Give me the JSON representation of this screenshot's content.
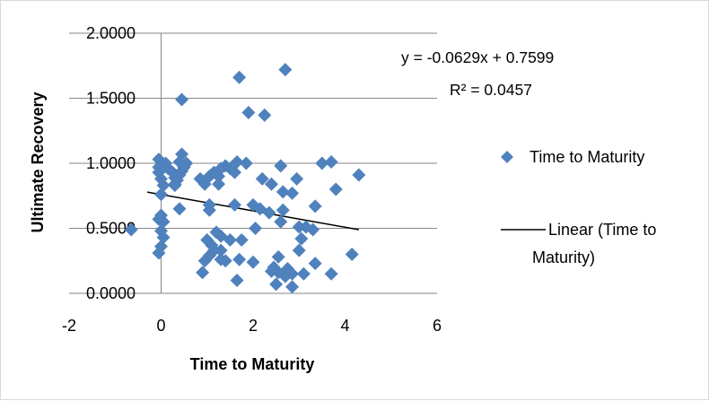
{
  "chart_data": {
    "type": "scatter",
    "xlabel": "Time to Maturity",
    "ylabel": "Ultimate Recovery",
    "xlim": [
      -2,
      6
    ],
    "ylim": [
      0,
      2
    ],
    "x_ticks": [
      "-2",
      "0",
      "2",
      "4",
      "6"
    ],
    "y_ticks": [
      "0.0000",
      "0.5000",
      "1.0000",
      "1.5000",
      "2.0000"
    ],
    "grid": "horizontal major gridlines, vertical line at x = 0",
    "legend_position": "right",
    "marker_color": "#4f81bd",
    "trendline_color": "#000000",
    "trendline": {
      "slope": -0.0629,
      "intercept": 0.7599,
      "x_range": [
        -0.3,
        4.3
      ],
      "equation": "y = -0.0629x + 0.7599",
      "r_squared": "R² = 0.0457"
    },
    "series": [
      {
        "name": "Time to Maturity",
        "marker": "diamond",
        "points": [
          [
            -0.65,
            0.49
          ],
          [
            -0.05,
            1.03
          ],
          [
            -0.05,
            0.97
          ],
          [
            -0.05,
            0.93
          ],
          [
            0.0,
            0.88
          ],
          [
            0.05,
            0.83
          ],
          [
            0.0,
            0.76
          ],
          [
            0.1,
            1.0
          ],
          [
            0.15,
            0.96
          ],
          [
            0.25,
            0.93
          ],
          [
            0.3,
            0.89
          ],
          [
            0.3,
            0.84
          ],
          [
            0.4,
            1.01
          ],
          [
            0.45,
            1.07
          ],
          [
            0.5,
            0.97
          ],
          [
            0.55,
            1.0
          ],
          [
            0.45,
            0.94
          ],
          [
            0.4,
            0.91
          ],
          [
            0.35,
            0.87
          ],
          [
            0.3,
            0.83
          ],
          [
            0.45,
            1.49
          ],
          [
            0.4,
            0.65
          ],
          [
            0.0,
            0.6
          ],
          [
            0.05,
            0.55
          ],
          [
            0.0,
            0.48
          ],
          [
            0.05,
            0.43
          ],
          [
            0.0,
            0.36
          ],
          [
            -0.05,
            0.31
          ],
          [
            -0.05,
            0.57
          ],
          [
            0.85,
            0.88
          ],
          [
            0.95,
            0.84
          ],
          [
            1.05,
            0.9
          ],
          [
            1.15,
            0.93
          ],
          [
            1.25,
            0.9
          ],
          [
            1.3,
            0.96
          ],
          [
            1.4,
            0.98
          ],
          [
            1.5,
            0.96
          ],
          [
            1.6,
            0.93
          ],
          [
            1.65,
            1.01
          ],
          [
            1.85,
            1.0
          ],
          [
            2.2,
            0.88
          ],
          [
            2.4,
            0.84
          ],
          [
            2.6,
            0.98
          ],
          [
            1.25,
            0.84
          ],
          [
            1.05,
            0.68
          ],
          [
            1.05,
            0.64
          ],
          [
            1.6,
            0.68
          ],
          [
            2.0,
            0.68
          ],
          [
            2.15,
            0.65
          ],
          [
            2.35,
            0.62
          ],
          [
            2.05,
            0.5
          ],
          [
            1.2,
            0.47
          ],
          [
            1.3,
            0.44
          ],
          [
            1.0,
            0.41
          ],
          [
            1.1,
            0.37
          ],
          [
            1.5,
            0.41
          ],
          [
            1.75,
            0.41
          ],
          [
            1.15,
            0.33
          ],
          [
            1.3,
            0.33
          ],
          [
            1.05,
            0.29
          ],
          [
            0.95,
            0.25
          ],
          [
            1.3,
            0.26
          ],
          [
            1.4,
            0.25
          ],
          [
            1.7,
            0.26
          ],
          [
            0.9,
            0.16
          ],
          [
            1.65,
            0.1
          ],
          [
            2.0,
            0.24
          ],
          [
            1.7,
            1.66
          ],
          [
            1.9,
            1.39
          ],
          [
            2.25,
            1.37
          ],
          [
            2.7,
            1.72
          ],
          [
            2.65,
            0.78
          ],
          [
            2.85,
            0.77
          ],
          [
            2.95,
            0.88
          ],
          [
            2.65,
            0.64
          ],
          [
            2.6,
            0.55
          ],
          [
            3.0,
            0.51
          ],
          [
            3.15,
            0.51
          ],
          [
            3.35,
            0.67
          ],
          [
            3.5,
            1.0
          ],
          [
            3.7,
            1.01
          ],
          [
            3.8,
            0.8
          ],
          [
            4.3,
            0.91
          ],
          [
            3.3,
            0.49
          ],
          [
            3.05,
            0.42
          ],
          [
            3.0,
            0.33
          ],
          [
            2.55,
            0.28
          ],
          [
            2.45,
            0.2
          ],
          [
            2.55,
            0.16
          ],
          [
            2.4,
            0.17
          ],
          [
            2.75,
            0.19
          ],
          [
            2.85,
            0.15
          ],
          [
            2.7,
            0.13
          ],
          [
            3.1,
            0.15
          ],
          [
            3.35,
            0.23
          ],
          [
            3.7,
            0.15
          ],
          [
            4.15,
            0.3
          ],
          [
            2.5,
            0.07
          ],
          [
            2.85,
            0.05
          ]
        ]
      }
    ],
    "legend": [
      {
        "label": "Time to Maturity",
        "symbol": "diamond"
      },
      {
        "label": "Linear (Time to Maturity)",
        "symbol": "line"
      }
    ]
  }
}
